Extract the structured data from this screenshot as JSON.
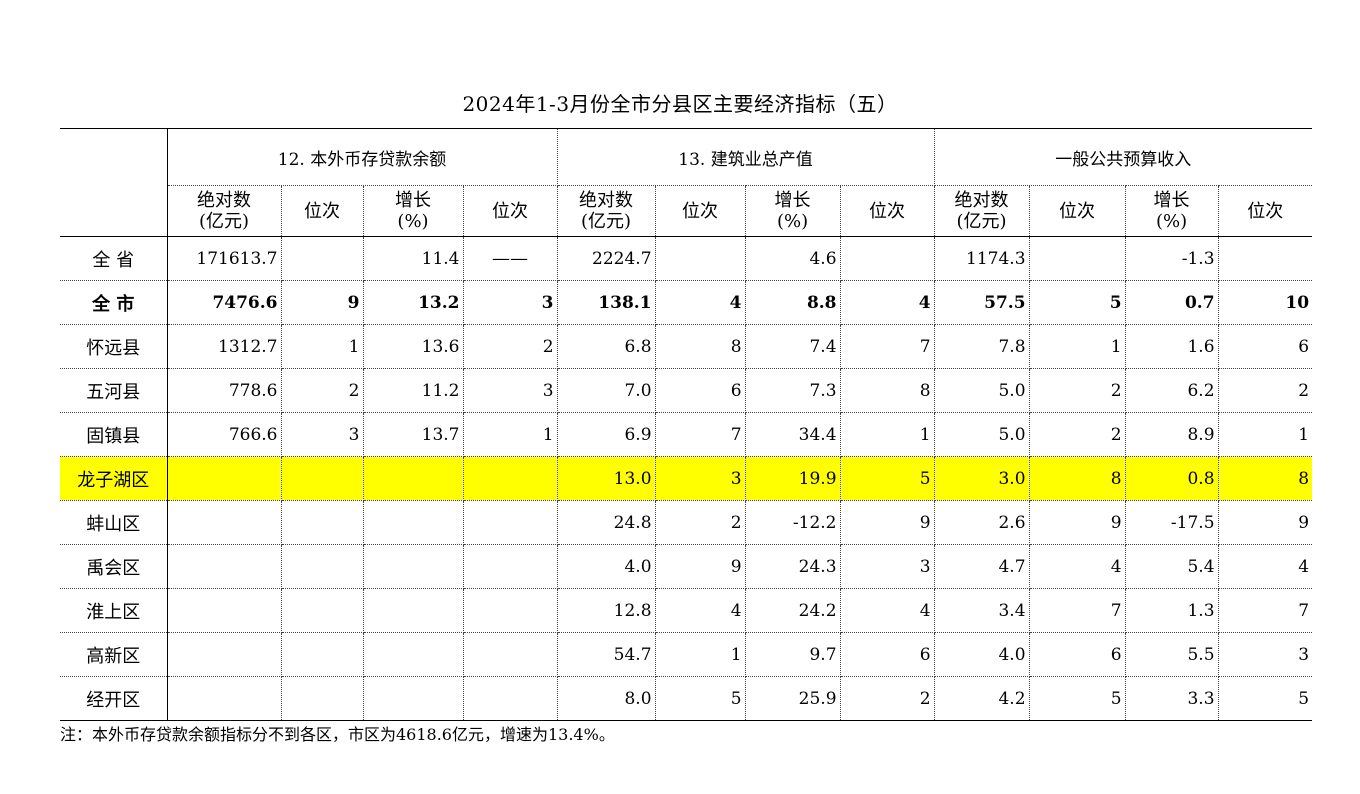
{
  "title": "2024年1-3月份全市分县区主要经济指标（五）",
  "groups": [
    "12. 本外币存贷款余额",
    "13. 建筑业总产值",
    "一般公共预算收入"
  ],
  "subheaders": {
    "abs_line1": "绝对数",
    "abs_line2": "(亿元)",
    "rank": "位次",
    "growth_line1": "增长",
    "growth_line2": "(%)"
  },
  "rows": [
    {
      "region": "全  省",
      "v": [
        "171613.7",
        "",
        "11.4",
        "——",
        "2224.7",
        "",
        "4.6",
        "",
        "1174.3",
        "",
        "-1.3",
        ""
      ]
    },
    {
      "region": "全  市",
      "v": [
        "7476.6",
        "9",
        "13.2",
        "3",
        "138.1",
        "4",
        "8.8",
        "4",
        "57.5",
        "5",
        "0.7",
        "10"
      ]
    },
    {
      "region": "怀远县",
      "v": [
        "1312.7",
        "1",
        "13.6",
        "2",
        "6.8",
        "8",
        "7.4",
        "7",
        "7.8",
        "1",
        "1.6",
        "6"
      ]
    },
    {
      "region": "五河县",
      "v": [
        "778.6",
        "2",
        "11.2",
        "3",
        "7.0",
        "6",
        "7.3",
        "8",
        "5.0",
        "2",
        "6.2",
        "2"
      ]
    },
    {
      "region": "固镇县",
      "v": [
        "766.6",
        "3",
        "13.7",
        "1",
        "6.9",
        "7",
        "34.4",
        "1",
        "5.0",
        "2",
        "8.9",
        "1"
      ]
    },
    {
      "region": "龙子湖区",
      "v": [
        "",
        "",
        "",
        "",
        "13.0",
        "3",
        "19.9",
        "5",
        "3.0",
        "8",
        "0.8",
        "8"
      ]
    },
    {
      "region": "蚌山区",
      "v": [
        "",
        "",
        "",
        "",
        "24.8",
        "2",
        "-12.2",
        "9",
        "2.6",
        "9",
        "-17.5",
        "9"
      ]
    },
    {
      "region": "禹会区",
      "v": [
        "",
        "",
        "",
        "",
        "4.0",
        "9",
        "24.3",
        "3",
        "4.7",
        "4",
        "5.4",
        "4"
      ]
    },
    {
      "region": "淮上区",
      "v": [
        "",
        "",
        "",
        "",
        "12.8",
        "4",
        "24.2",
        "4",
        "3.4",
        "7",
        "1.3",
        "7"
      ]
    },
    {
      "region": "高新区",
      "v": [
        "",
        "",
        "",
        "",
        "54.7",
        "1",
        "9.7",
        "6",
        "4.0",
        "6",
        "5.5",
        "3"
      ]
    },
    {
      "region": "经开区",
      "v": [
        "",
        "",
        "",
        "",
        "8.0",
        "5",
        "25.9",
        "2",
        "4.2",
        "5",
        "3.3",
        "5"
      ]
    }
  ],
  "highlight_color": "#ffff00",
  "note": "注：本外币存贷款余额指标分不到各区，市区为4618.6亿元，增速为13.4%。"
}
